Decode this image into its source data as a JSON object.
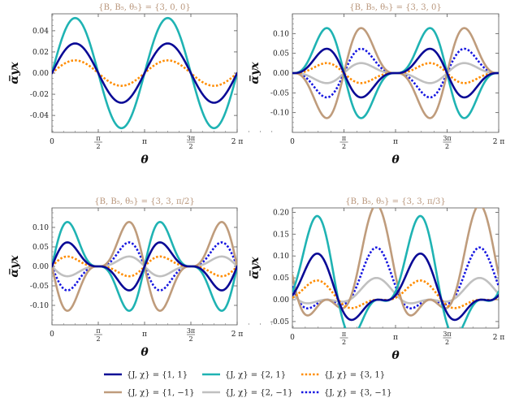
{
  "chart_data": [
    {
      "type": "line",
      "title": "{B, B₅, θ₅} = {3, 0, 0}",
      "xlabel": "θ",
      "ylabel": "α̅yx",
      "xlim": [
        0,
        6.2832
      ],
      "ylim": [
        -0.056,
        0.056
      ],
      "xticks": [
        "0",
        "π/2",
        "π",
        "3π/2",
        "2 π"
      ],
      "yticks": [
        -0.04,
        -0.02,
        0.0,
        0.02,
        0.04
      ],
      "ytick_labels": [
        "-0.04",
        "-0.02",
        "0.00",
        "0.02",
        "0.04"
      ],
      "series": [
        {
          "name": "{J, χ} = {1, 1}",
          "amp": 0.028,
          "func": "sin2"
        },
        {
          "name": "{J, χ} = {2, 1}",
          "amp": 0.052,
          "func": "sin2"
        },
        {
          "name": "{J, χ} = {3, 1}",
          "amp": 0.012,
          "func": "sin2"
        }
      ]
    },
    {
      "type": "line",
      "title": "{B, B₅, θ₅} = {3, 3, 0}",
      "xlabel": "θ",
      "ylabel": "α̅yx",
      "xlim": [
        0,
        6.2832
      ],
      "ylim": [
        -0.15,
        0.15
      ],
      "xticks": [
        "0",
        "π/2",
        "π",
        "3π/2",
        "2 π"
      ],
      "yticks": [
        -0.1,
        -0.05,
        0.0,
        0.05,
        0.1
      ],
      "ytick_labels": [
        "-0.10",
        "-0.05",
        "0.00",
        "0.05",
        "0.10"
      ],
      "series": [
        {
          "name": "{J, χ} = {1, 1}",
          "amp": 0.073,
          "func": "sinsq_pos"
        },
        {
          "name": "{J, χ} = {2, 1}",
          "amp": 0.135,
          "func": "sinsq_pos"
        },
        {
          "name": "{J, χ} = {3, 1}",
          "amp": 0.03,
          "func": "sinsq_pos"
        },
        {
          "name": "{J, χ} = {1, −1}",
          "amp": 0.135,
          "func": "sinsq_neg"
        },
        {
          "name": "{J, χ} = {2, −1}",
          "amp": 0.03,
          "func": "sinsq_neg"
        },
        {
          "name": "{J, χ} = {3, −1}",
          "amp": 0.073,
          "func": "sinsq_neg"
        }
      ]
    },
    {
      "type": "line",
      "title": "{B, B₅, θ₅} = {3, 3, π/2}",
      "xlabel": "θ",
      "ylabel": "α̅yx",
      "xlim": [
        0,
        6.2832
      ],
      "ylim": [
        -0.15,
        0.15
      ],
      "xticks": [
        "0",
        "π/2",
        "π",
        "3π/2",
        "2 π"
      ],
      "yticks": [
        -0.1,
        -0.05,
        0.0,
        0.05,
        0.1
      ],
      "ytick_labels": [
        "-0.10",
        "-0.05",
        "0.00",
        "0.05",
        "0.10"
      ],
      "series": [
        {
          "name": "{J, χ} = {1, 1}",
          "amp": 0.073,
          "func": "cossq_pos"
        },
        {
          "name": "{J, χ} = {2, 1}",
          "amp": 0.135,
          "func": "cossq_pos"
        },
        {
          "name": "{J, χ} = {3, 1}",
          "amp": 0.03,
          "func": "cossq_pos"
        },
        {
          "name": "{J, χ} = {1, −1}",
          "amp": 0.135,
          "func": "cossq_neg"
        },
        {
          "name": "{J, χ} = {2, −1}",
          "amp": 0.03,
          "func": "cossq_neg"
        },
        {
          "name": "{J, χ} = {3, −1}",
          "amp": 0.073,
          "func": "cossq_neg"
        }
      ]
    },
    {
      "type": "line",
      "title": "{B, B₅, θ₅} = {3, 3, π/3}",
      "xlabel": "θ",
      "ylabel": "α̅yx",
      "xlim": [
        0,
        6.2832
      ],
      "ylim": [
        -0.065,
        0.21
      ],
      "xticks": [
        "0",
        "π/2",
        "π",
        "3π/2",
        "2 π"
      ],
      "yticks": [
        -0.05,
        0.0,
        0.05,
        0.1,
        0.15,
        0.2
      ],
      "ytick_labels": [
        "-0.05",
        "0.00",
        "0.05",
        "0.10",
        "0.15",
        "0.20"
      ],
      "series": [
        {
          "name": "{J, χ} = {1, 1}",
          "amp": 0.108,
          "func": "third_pos"
        },
        {
          "name": "{J, χ} = {2, 1}",
          "amp": 0.196,
          "func": "third_pos"
        },
        {
          "name": "{J, χ} = {3, 1}",
          "amp": 0.045,
          "func": "third_pos"
        },
        {
          "name": "{J, χ} = {1, −1}",
          "amp": 0.196,
          "func": "third_neg"
        },
        {
          "name": "{J, χ} = {2, −1}",
          "amp": 0.045,
          "func": "third_neg"
        },
        {
          "name": "{J, χ} = {3, −1}",
          "amp": 0.108,
          "func": "third_neg"
        }
      ]
    }
  ],
  "legend": [
    {
      "label": "{J, χ} = {1, 1}",
      "color": "#0a0a96",
      "dash": "solid"
    },
    {
      "label": "{J, χ} = {2, 1}",
      "color": "#1fb3b3",
      "dash": "solid"
    },
    {
      "label": "{J, χ} = {3, 1}",
      "color": "#ff8c00",
      "dash": "dotted"
    },
    {
      "label": "{J, χ} = {1, −1}",
      "color": "#bf9c7c",
      "dash": "solid"
    },
    {
      "label": "{J, χ} = {2, −1}",
      "color": "#c0c0c0",
      "dash": "solid"
    },
    {
      "label": "{J, χ} = {3, −1}",
      "color": "#1616e0",
      "dash": "dotted"
    }
  ]
}
